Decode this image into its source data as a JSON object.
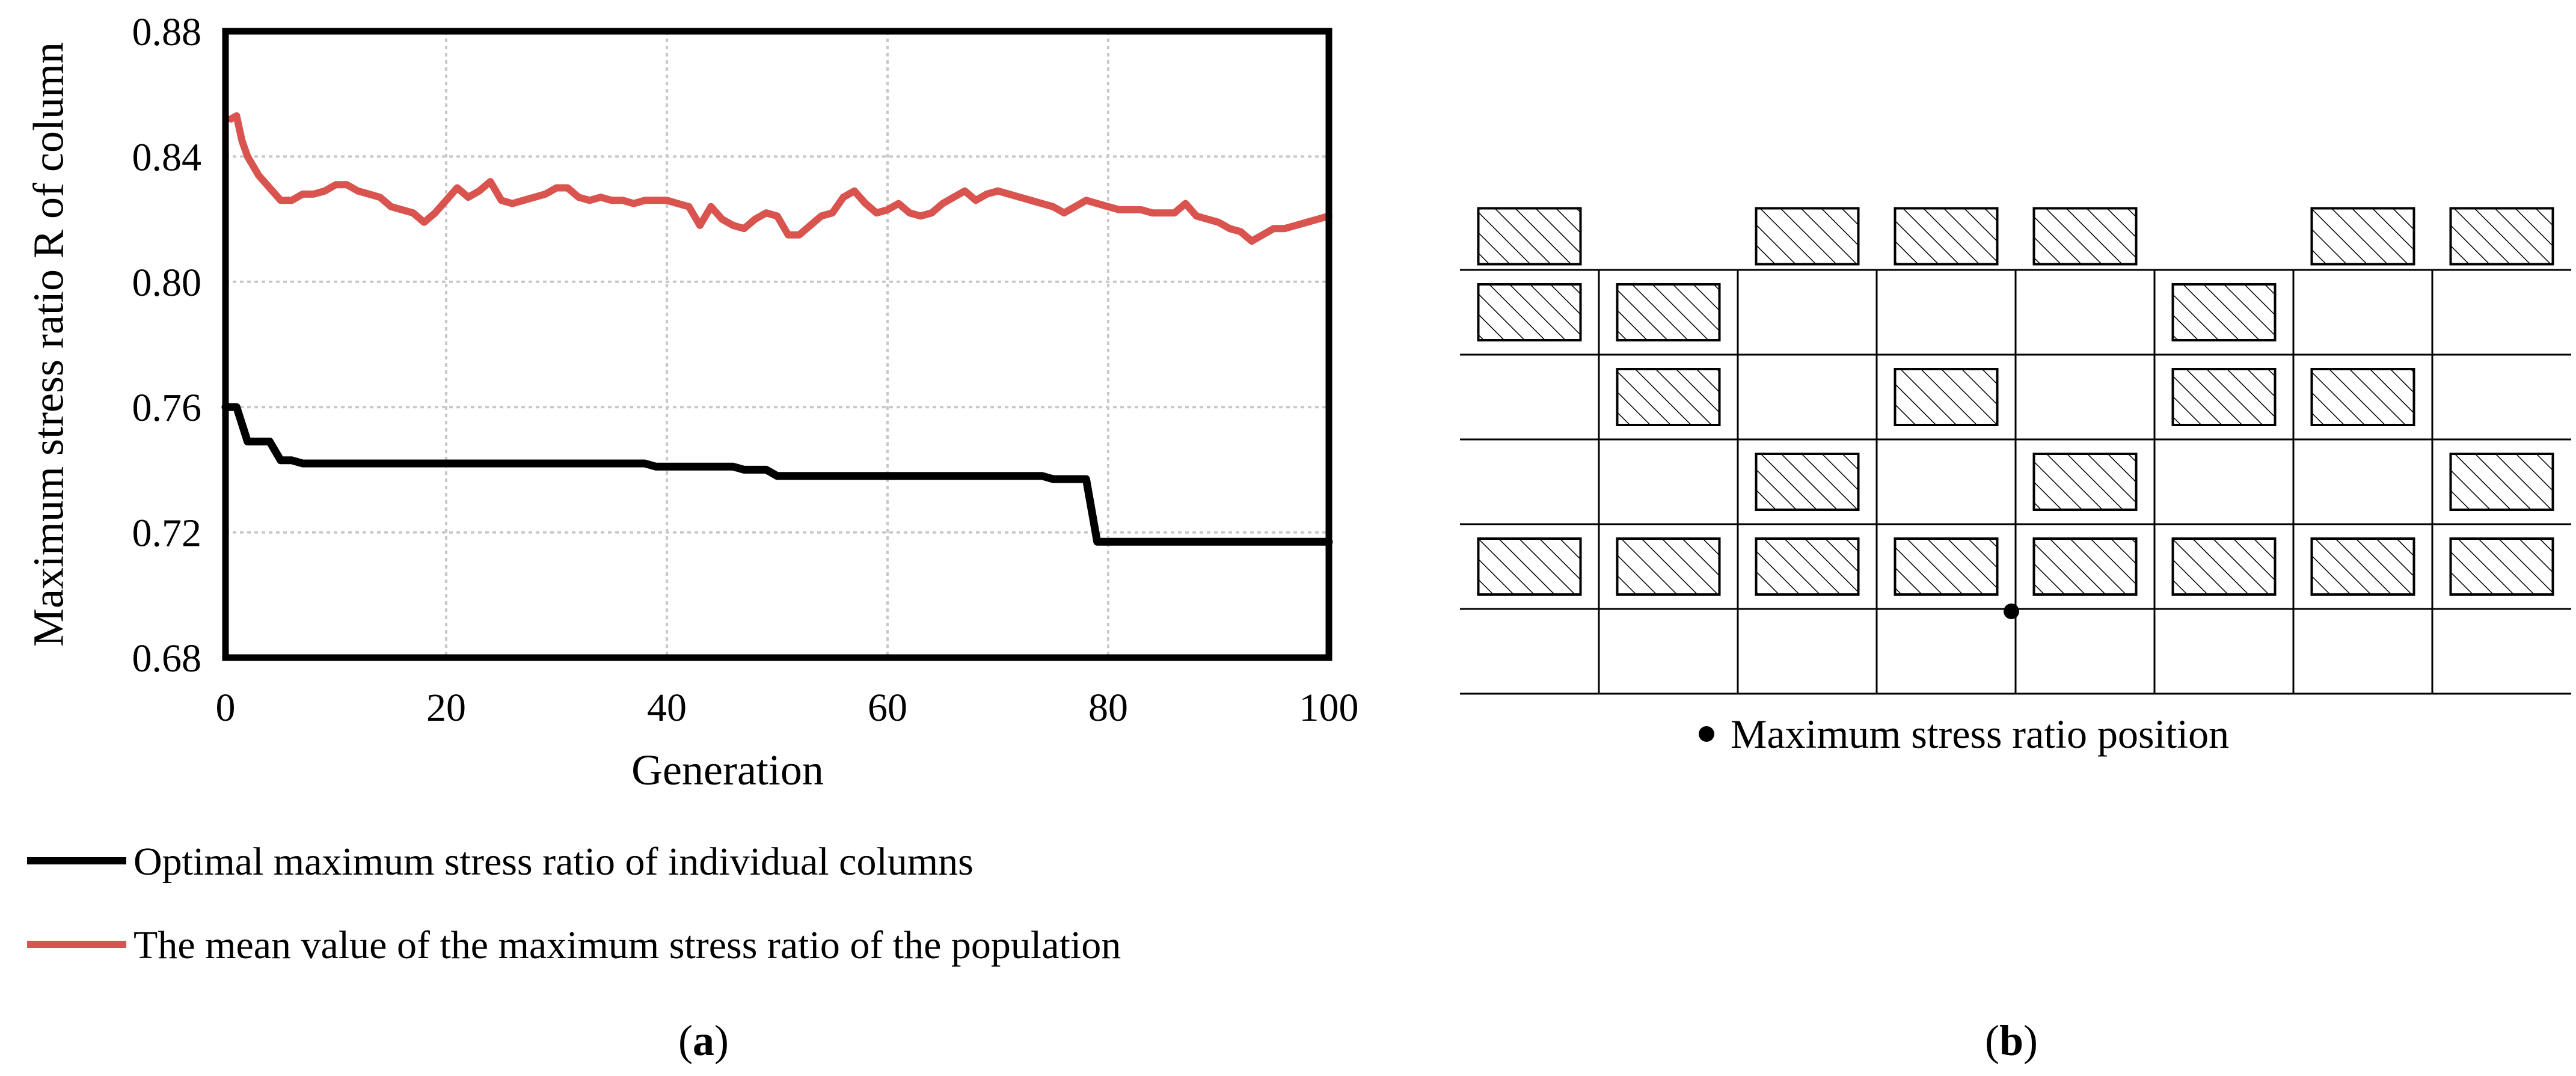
{
  "chart_data": {
    "type": "line",
    "xlabel": "Generation",
    "ylabel": "Maximum stress ratio R of column",
    "xlim": [
      0,
      100
    ],
    "ylim": [
      0.68,
      0.88
    ],
    "x_ticks": [
      "0",
      "20",
      "40",
      "60",
      "80",
      "100"
    ],
    "y_ticks": [
      "0.68",
      "0.72",
      "0.76",
      "0.80",
      "0.84",
      "0.88"
    ],
    "grid": true,
    "legend_position": "bottom-left",
    "series": [
      {
        "name": "Optimal maximum stress ratio of individual columns",
        "color": "#000000",
        "x": [
          0,
          1,
          2,
          3,
          4,
          5,
          6,
          7,
          8,
          38,
          39,
          46,
          47,
          49,
          50,
          74,
          75,
          78,
          79,
          100
        ],
        "y": [
          0.76,
          0.76,
          0.749,
          0.749,
          0.749,
          0.743,
          0.743,
          0.742,
          0.742,
          0.742,
          0.741,
          0.741,
          0.74,
          0.74,
          0.738,
          0.738,
          0.737,
          0.737,
          0.717,
          0.717
        ]
      },
      {
        "name": "The mean value of the maximum stress ratio of the population",
        "color": "#d9534f",
        "x": [
          0.5,
          1,
          1.5,
          2,
          3,
          4,
          5,
          6,
          7,
          8,
          9,
          10,
          11,
          12,
          13,
          14,
          15,
          16,
          17,
          18,
          19,
          20,
          21,
          22,
          23,
          24,
          25,
          26,
          27,
          28,
          29,
          30,
          31,
          32,
          33,
          34,
          35,
          36,
          37,
          38,
          39,
          40,
          41,
          42,
          43,
          44,
          45,
          46,
          47,
          48,
          49,
          50,
          51,
          52,
          53,
          54,
          55,
          56,
          57,
          58,
          59,
          60,
          61,
          62,
          63,
          64,
          65,
          66,
          67,
          68,
          69,
          70,
          71,
          72,
          73,
          74,
          75,
          76,
          77,
          78,
          79,
          80,
          81,
          82,
          83,
          84,
          85,
          86,
          87,
          88,
          89,
          90,
          91,
          92,
          93,
          94,
          95,
          96,
          97,
          98,
          99,
          100
        ],
        "y": [
          0.852,
          0.853,
          0.845,
          0.84,
          0.834,
          0.83,
          0.826,
          0.826,
          0.828,
          0.828,
          0.829,
          0.831,
          0.831,
          0.829,
          0.828,
          0.827,
          0.824,
          0.823,
          0.822,
          0.819,
          0.822,
          0.826,
          0.83,
          0.827,
          0.829,
          0.832,
          0.826,
          0.825,
          0.826,
          0.827,
          0.828,
          0.83,
          0.83,
          0.827,
          0.826,
          0.827,
          0.826,
          0.826,
          0.825,
          0.826,
          0.826,
          0.826,
          0.825,
          0.824,
          0.818,
          0.824,
          0.82,
          0.818,
          0.817,
          0.82,
          0.822,
          0.821,
          0.815,
          0.815,
          0.818,
          0.821,
          0.822,
          0.827,
          0.829,
          0.825,
          0.822,
          0.823,
          0.825,
          0.822,
          0.821,
          0.822,
          0.825,
          0.827,
          0.829,
          0.826,
          0.828,
          0.829,
          0.828,
          0.827,
          0.826,
          0.825,
          0.824,
          0.822,
          0.824,
          0.826,
          0.825,
          0.824,
          0.823,
          0.823,
          0.823,
          0.822,
          0.822,
          0.822,
          0.825,
          0.821,
          0.82,
          0.819,
          0.817,
          0.816,
          0.813,
          0.815,
          0.817,
          0.817,
          0.818,
          0.819,
          0.82,
          0.821
        ]
      }
    ]
  },
  "panel_a_label": "a",
  "panel_b_label": "b",
  "layout_diagram": {
    "cols": 8,
    "rows": 5,
    "top_braces": [
      0,
      2,
      3,
      4,
      6,
      7
    ],
    "rows_braces": [
      [
        0,
        1,
        5
      ],
      [
        1,
        3,
        5,
        6
      ],
      [
        2,
        4,
        7
      ],
      [
        0,
        1,
        2,
        3,
        4,
        5,
        6,
        7
      ],
      []
    ],
    "max_point_label": "Maximum stress ratio position"
  }
}
